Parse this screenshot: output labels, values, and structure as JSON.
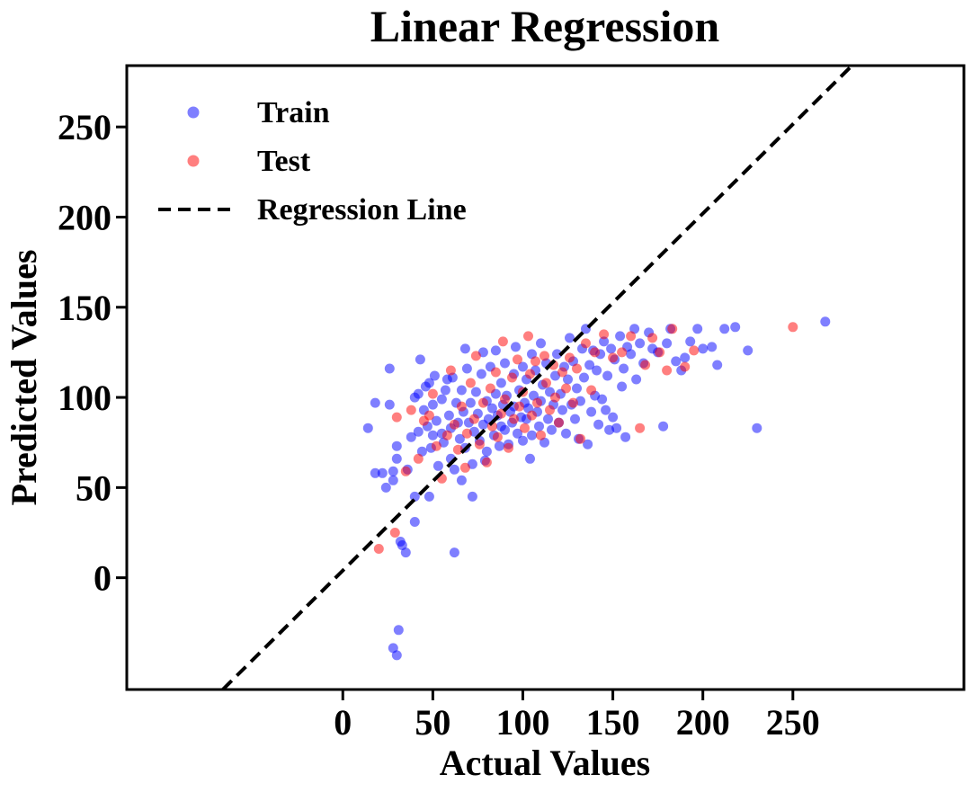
{
  "chart_data": {
    "type": "scatter",
    "title": "Linear Regression",
    "xlabel": "Actual Values",
    "ylabel": "Predicted Values",
    "xlim": [
      -120,
      345
    ],
    "ylim": [
      -62,
      284
    ],
    "xticks": [
      0,
      50,
      100,
      150,
      200,
      250
    ],
    "yticks": [
      0,
      50,
      100,
      150,
      200,
      250
    ],
    "legend_position": "top-left",
    "colors": {
      "train": "#0000ff",
      "test": "#ff0000",
      "line": "#000000"
    },
    "regression_line": {
      "slope": 0.99,
      "intercept": 4.0,
      "style": "dashed"
    },
    "series": [
      {
        "name": "Train",
        "color": "#0000ff",
        "points": [
          [
            14,
            83
          ],
          [
            18,
            58
          ],
          [
            18,
            97
          ],
          [
            22,
            58
          ],
          [
            24,
            50
          ],
          [
            26,
            116
          ],
          [
            26,
            96
          ],
          [
            28,
            59
          ],
          [
            28,
            54
          ],
          [
            30,
            73
          ],
          [
            30,
            66
          ],
          [
            32,
            20
          ],
          [
            33,
            18
          ],
          [
            35,
            14
          ],
          [
            36,
            60
          ],
          [
            38,
            78
          ],
          [
            40,
            100
          ],
          [
            40,
            45
          ],
          [
            40,
            31
          ],
          [
            42,
            81
          ],
          [
            42,
            102
          ],
          [
            43,
            121
          ],
          [
            44,
            70
          ],
          [
            45,
            93
          ],
          [
            46,
            106
          ],
          [
            47,
            84
          ],
          [
            48,
            108
          ],
          [
            48,
            45
          ],
          [
            49,
            72
          ],
          [
            50,
            96
          ],
          [
            50,
            79
          ],
          [
            51,
            112
          ],
          [
            52,
            87
          ],
          [
            53,
            62
          ],
          [
            55,
            80
          ],
          [
            55,
            99
          ],
          [
            56,
            75
          ],
          [
            57,
            104
          ],
          [
            58,
            110
          ],
          [
            59,
            90
          ],
          [
            60,
            83
          ],
          [
            60,
            66
          ],
          [
            61,
            111
          ],
          [
            62,
            14
          ],
          [
            62,
            60
          ],
          [
            63,
            97
          ],
          [
            64,
            86
          ],
          [
            65,
            77
          ],
          [
            66,
            104
          ],
          [
            66,
            54
          ],
          [
            67,
            92
          ],
          [
            68,
            127
          ],
          [
            68,
            72
          ],
          [
            69,
            116
          ],
          [
            70,
            86
          ],
          [
            71,
            97
          ],
          [
            72,
            45
          ],
          [
            72,
            63
          ],
          [
            73,
            81
          ],
          [
            74,
            103
          ],
          [
            75,
            91
          ],
          [
            76,
            76
          ],
          [
            77,
            113
          ],
          [
            78,
            125
          ],
          [
            78,
            85
          ],
          [
            79,
            65
          ],
          [
            80,
            98
          ],
          [
            80,
            70
          ],
          [
            81,
            88
          ],
          [
            82,
            117
          ],
          [
            83,
            94
          ],
          [
            84,
            79
          ],
          [
            85,
            126
          ],
          [
            85,
            102
          ],
          [
            86,
            90
          ],
          [
            87,
            73
          ],
          [
            88,
            108
          ],
          [
            88,
            84
          ],
          [
            89,
            96
          ],
          [
            90,
            119
          ],
          [
            90,
            82
          ],
          [
            91,
            101
          ],
          [
            92,
            74
          ],
          [
            93,
            92
          ],
          [
            94,
            86
          ],
          [
            95,
            113
          ],
          [
            95,
            95
          ],
          [
            96,
            128
          ],
          [
            97,
            80
          ],
          [
            98,
            104
          ],
          [
            99,
            89
          ],
          [
            100,
            117
          ],
          [
            100,
            76
          ],
          [
            101,
            97
          ],
          [
            102,
            110
          ],
          [
            102,
            88
          ],
          [
            103,
            94
          ],
          [
            104,
            66
          ],
          [
            105,
            124
          ],
          [
            105,
            79
          ],
          [
            106,
            101
          ],
          [
            107,
            115
          ],
          [
            108,
            92
          ],
          [
            109,
            84
          ],
          [
            110,
            130
          ],
          [
            110,
            98
          ],
          [
            111,
            107
          ],
          [
            112,
            75
          ],
          [
            113,
            119
          ],
          [
            114,
            88
          ],
          [
            115,
            103
          ],
          [
            116,
            82
          ],
          [
            117,
            96
          ],
          [
            118,
            112
          ],
          [
            119,
            124
          ],
          [
            120,
            86
          ],
          [
            121,
            102
          ],
          [
            122,
            93
          ],
          [
            123,
            117
          ],
          [
            124,
            80
          ],
          [
            125,
            110
          ],
          [
            126,
            133
          ],
          [
            127,
            96
          ],
          [
            128,
            120
          ],
          [
            129,
            88
          ],
          [
            130,
            105
          ],
          [
            131,
            77
          ],
          [
            132,
            98
          ],
          [
            133,
            127
          ],
          [
            134,
            111
          ],
          [
            135,
            138
          ],
          [
            136,
            74
          ],
          [
            137,
            118
          ],
          [
            138,
            92
          ],
          [
            139,
            126
          ],
          [
            140,
            101
          ],
          [
            141,
            115
          ],
          [
            142,
            85
          ],
          [
            143,
            124
          ],
          [
            144,
            99
          ],
          [
            145,
            131
          ],
          [
            146,
            93
          ],
          [
            147,
            112
          ],
          [
            148,
            82
          ],
          [
            149,
            127
          ],
          [
            150,
            89
          ],
          [
            151,
            121
          ],
          [
            152,
            83
          ],
          [
            154,
            134
          ],
          [
            155,
            106
          ],
          [
            156,
            116
          ],
          [
            157,
            78
          ],
          [
            158,
            128
          ],
          [
            160,
            124
          ],
          [
            162,
            138
          ],
          [
            163,
            110
          ],
          [
            165,
            130
          ],
          [
            167,
            119
          ],
          [
            170,
            136
          ],
          [
            172,
            127
          ],
          [
            175,
            125
          ],
          [
            178,
            84
          ],
          [
            180,
            130
          ],
          [
            182,
            138
          ],
          [
            185,
            120
          ],
          [
            188,
            115
          ],
          [
            190,
            122
          ],
          [
            193,
            131
          ],
          [
            197,
            138
          ],
          [
            200,
            127
          ],
          [
            205,
            128
          ],
          [
            208,
            118
          ],
          [
            212,
            138
          ],
          [
            218,
            139
          ],
          [
            225,
            126
          ],
          [
            230,
            83
          ],
          [
            268,
            142
          ],
          [
            30,
            -43
          ],
          [
            28,
            -39
          ],
          [
            31,
            -29
          ]
        ]
      },
      {
        "name": "Test",
        "color": "#ff0000",
        "points": [
          [
            20,
            16
          ],
          [
            29,
            25
          ],
          [
            30,
            89
          ],
          [
            35,
            59
          ],
          [
            38,
            93
          ],
          [
            42,
            66
          ],
          [
            45,
            87
          ],
          [
            48,
            90
          ],
          [
            50,
            102
          ],
          [
            52,
            73
          ],
          [
            55,
            55
          ],
          [
            58,
            79
          ],
          [
            60,
            115
          ],
          [
            62,
            85
          ],
          [
            64,
            71
          ],
          [
            66,
            95
          ],
          [
            68,
            61
          ],
          [
            69,
            80
          ],
          [
            71,
            108
          ],
          [
            73,
            88
          ],
          [
            74,
            123
          ],
          [
            76,
            74
          ],
          [
            78,
            97
          ],
          [
            80,
            64
          ],
          [
            82,
            105
          ],
          [
            83,
            84
          ],
          [
            85,
            114
          ],
          [
            86,
            78
          ],
          [
            88,
            91
          ],
          [
            89,
            131
          ],
          [
            90,
            99
          ],
          [
            92,
            72
          ],
          [
            94,
            111
          ],
          [
            95,
            88
          ],
          [
            97,
            121
          ],
          [
            98,
            95
          ],
          [
            100,
            103
          ],
          [
            101,
            83
          ],
          [
            103,
            134
          ],
          [
            104,
            113
          ],
          [
            105,
            90
          ],
          [
            107,
            120
          ],
          [
            108,
            97
          ],
          [
            110,
            79
          ],
          [
            112,
            123
          ],
          [
            113,
            108
          ],
          [
            115,
            93
          ],
          [
            117,
            118
          ],
          [
            118,
            100
          ],
          [
            120,
            86
          ],
          [
            122,
            114
          ],
          [
            124,
            105
          ],
          [
            126,
            122
          ],
          [
            128,
            97
          ],
          [
            130,
            116
          ],
          [
            132,
            77
          ],
          [
            135,
            130
          ],
          [
            138,
            104
          ],
          [
            140,
            125
          ],
          [
            145,
            135
          ],
          [
            150,
            122
          ],
          [
            155,
            125
          ],
          [
            160,
            134
          ],
          [
            165,
            83
          ],
          [
            168,
            118
          ],
          [
            172,
            133
          ],
          [
            176,
            125
          ],
          [
            180,
            115
          ],
          [
            183,
            138
          ],
          [
            190,
            117
          ],
          [
            195,
            126
          ],
          [
            250,
            139
          ]
        ]
      }
    ]
  },
  "legend": {
    "items": [
      {
        "label": "Train",
        "kind": "marker",
        "color": "#0000ff"
      },
      {
        "label": "Test",
        "kind": "marker",
        "color": "#ff0000"
      },
      {
        "label": "Regression Line",
        "kind": "dashed-line",
        "color": "#000000"
      }
    ]
  }
}
